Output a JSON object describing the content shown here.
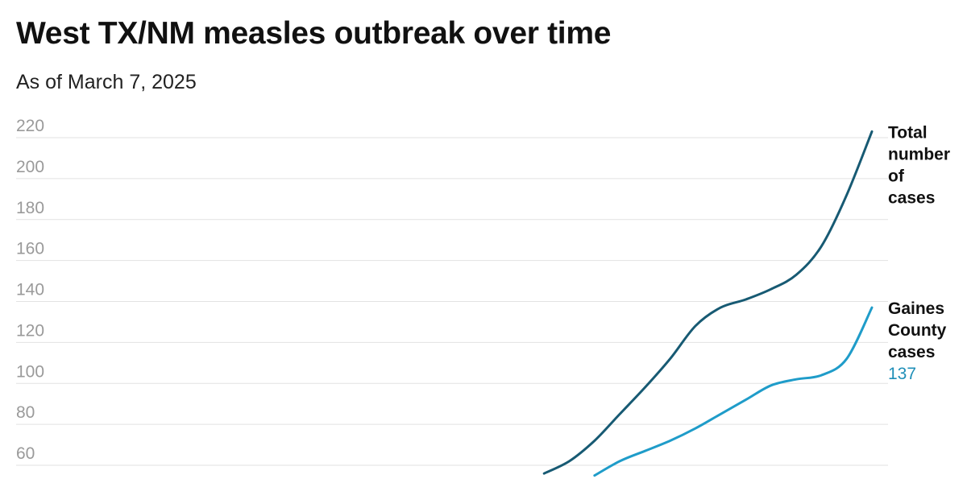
{
  "header": {
    "title": "West TX/NM measles outbreak over time",
    "subtitle": "As of March 7, 2025"
  },
  "colors": {
    "total": "#175a73",
    "gaines": "#1f9cc9",
    "gaines_value": "#1f8fb8",
    "grid": "#e2e2e2",
    "tick": "#9a9a9a"
  },
  "chart_data": {
    "type": "line",
    "title": "West TX/NM measles outbreak over time",
    "subtitle": "As of March 7, 2025",
    "xlabel": "",
    "ylabel": "",
    "y_ticks": [
      60,
      80,
      100,
      120,
      140,
      160,
      180,
      200,
      220
    ],
    "ylim": [
      55,
      225
    ],
    "grid": true,
    "legend": "labels at line ends (right)",
    "x_axis_visible": false,
    "x": [
      0,
      1,
      2,
      3,
      4,
      5,
      6,
      7,
      8,
      9,
      10,
      11,
      12,
      13,
      14,
      15,
      16,
      17,
      18,
      19,
      20,
      21,
      22,
      23,
      24,
      25,
      26,
      27,
      28,
      29,
      30,
      31,
      32,
      33,
      34
    ],
    "series": [
      {
        "name": "Total number of cases",
        "label_lines": [
          "Total",
          "number",
          "of",
          "cases"
        ],
        "end_value_label": "",
        "values": [
          null,
          null,
          null,
          null,
          null,
          null,
          null,
          null,
          null,
          null,
          null,
          null,
          null,
          null,
          null,
          null,
          null,
          null,
          null,
          null,
          null,
          56,
          62,
          72,
          85,
          98,
          112,
          128,
          137,
          141,
          146,
          153,
          167,
          192,
          223
        ]
      },
      {
        "name": "Gaines County cases",
        "label_lines": [
          "Gaines",
          "County",
          "cases"
        ],
        "end_value_label": "137",
        "values": [
          null,
          null,
          null,
          null,
          null,
          null,
          null,
          null,
          null,
          null,
          null,
          null,
          null,
          null,
          null,
          null,
          null,
          null,
          null,
          null,
          null,
          null,
          null,
          55,
          62,
          67,
          72,
          78,
          85,
          92,
          99,
          102,
          104,
          112,
          137
        ]
      }
    ]
  }
}
